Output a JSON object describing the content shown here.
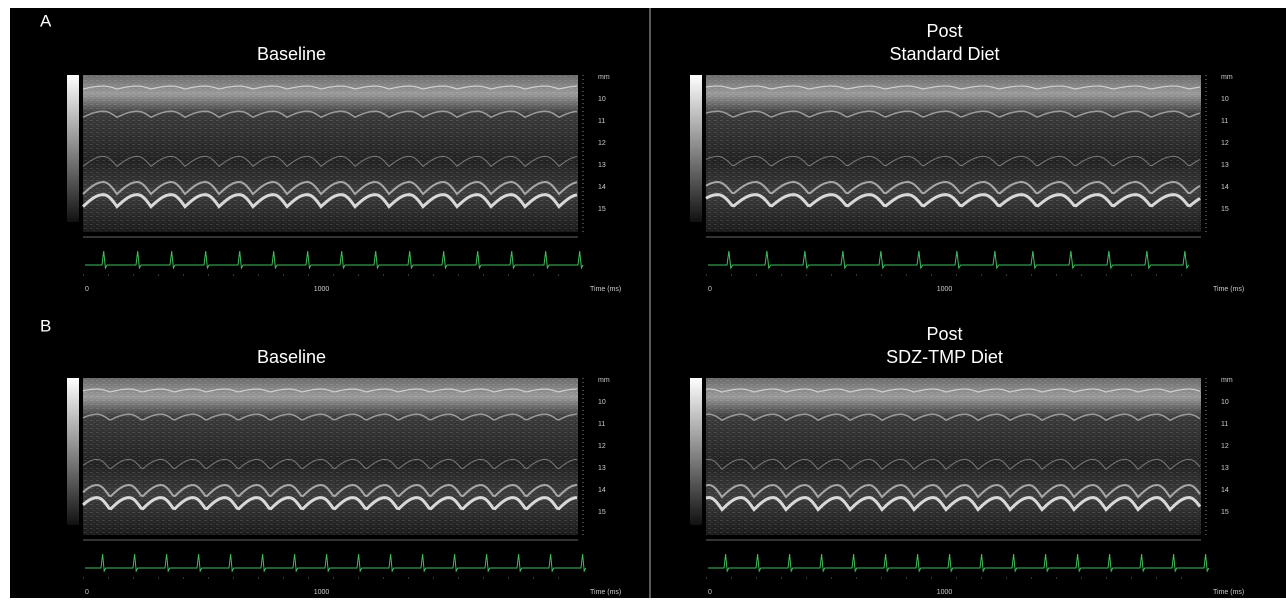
{
  "figure": {
    "rows": [
      {
        "label": "A",
        "panels": [
          {
            "title_lines": [
              "Baseline"
            ]
          },
          {
            "title_lines": [
              "Post",
              "Standard Diet"
            ]
          }
        ]
      },
      {
        "label": "B",
        "panels": [
          {
            "title_lines": [
              "Baseline"
            ]
          },
          {
            "title_lines": [
              "Post",
              "SDZ-TMP Diet"
            ]
          }
        ]
      }
    ],
    "depth_labels": [
      "mm",
      "10",
      "11",
      "12",
      "13",
      "14",
      "15"
    ],
    "x_labels": [
      "0",
      "1000",
      "Time (ms)"
    ]
  }
}
